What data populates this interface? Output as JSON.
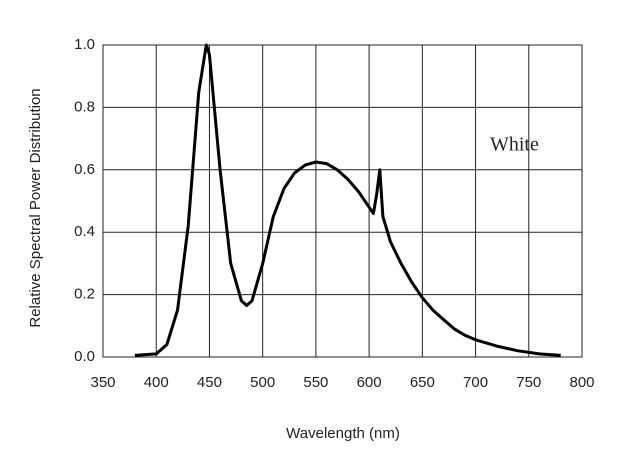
{
  "chart_data": {
    "type": "line",
    "ylabel": "Relative Spectral Power Distribution",
    "xlabel": "Wavelength (nm)",
    "annotation": "White",
    "x": [
      380,
      400,
      410,
      420,
      430,
      440,
      447,
      450,
      460,
      470,
      480,
      485,
      490,
      500,
      510,
      520,
      530,
      540,
      550,
      560,
      570,
      580,
      590,
      600,
      604,
      607,
      610,
      613,
      620,
      630,
      640,
      650,
      660,
      670,
      680,
      690,
      700,
      720,
      740,
      760,
      780
    ],
    "series": [
      {
        "name": "White",
        "color": "#000000",
        "values": [
          0.005,
          0.01,
          0.04,
          0.15,
          0.42,
          0.85,
          1.0,
          0.97,
          0.6,
          0.3,
          0.18,
          0.165,
          0.18,
          0.3,
          0.45,
          0.54,
          0.59,
          0.615,
          0.625,
          0.62,
          0.6,
          0.57,
          0.53,
          0.48,
          0.46,
          0.52,
          0.6,
          0.45,
          0.37,
          0.3,
          0.24,
          0.19,
          0.15,
          0.12,
          0.09,
          0.07,
          0.055,
          0.035,
          0.02,
          0.01,
          0.005
        ]
      }
    ],
    "xlim": [
      350,
      800
    ],
    "xticks": [
      350,
      400,
      450,
      500,
      550,
      600,
      650,
      700,
      750,
      800
    ],
    "ylim": [
      0,
      1
    ],
    "yticks": [
      {
        "value": 0,
        "label": "0.0"
      },
      0.2,
      0.4,
      0.6,
      0.8,
      {
        "value": 1,
        "label": "1.0"
      }
    ],
    "grid": true
  }
}
